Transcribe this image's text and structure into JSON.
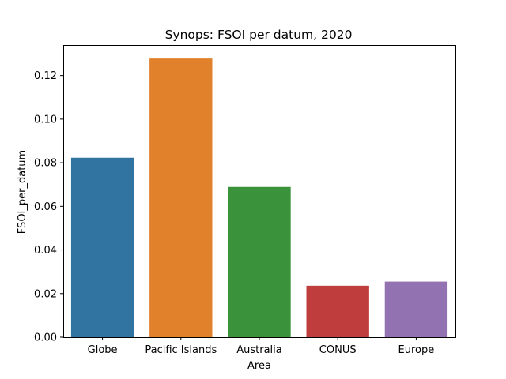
{
  "chart_data": {
    "type": "bar",
    "title": "Synops:  FSOI per datum, 2020",
    "xlabel": "Area",
    "ylabel": "FSOI_per_datum",
    "categories": [
      "Globe",
      "Pacific Islands",
      "Australia",
      "CONUS",
      "Europe"
    ],
    "values": [
      0.0823,
      0.1278,
      0.0689,
      0.0236,
      0.0255
    ],
    "colors": [
      "#3274a1",
      "#e1812c",
      "#3a923a",
      "#c03d3e",
      "#9372b2"
    ],
    "ylim": [
      0,
      0.134
    ],
    "yticks": [
      "0.00",
      "0.02",
      "0.04",
      "0.06",
      "0.08",
      "0.10",
      "0.12"
    ],
    "grid": false,
    "legend": "none"
  }
}
